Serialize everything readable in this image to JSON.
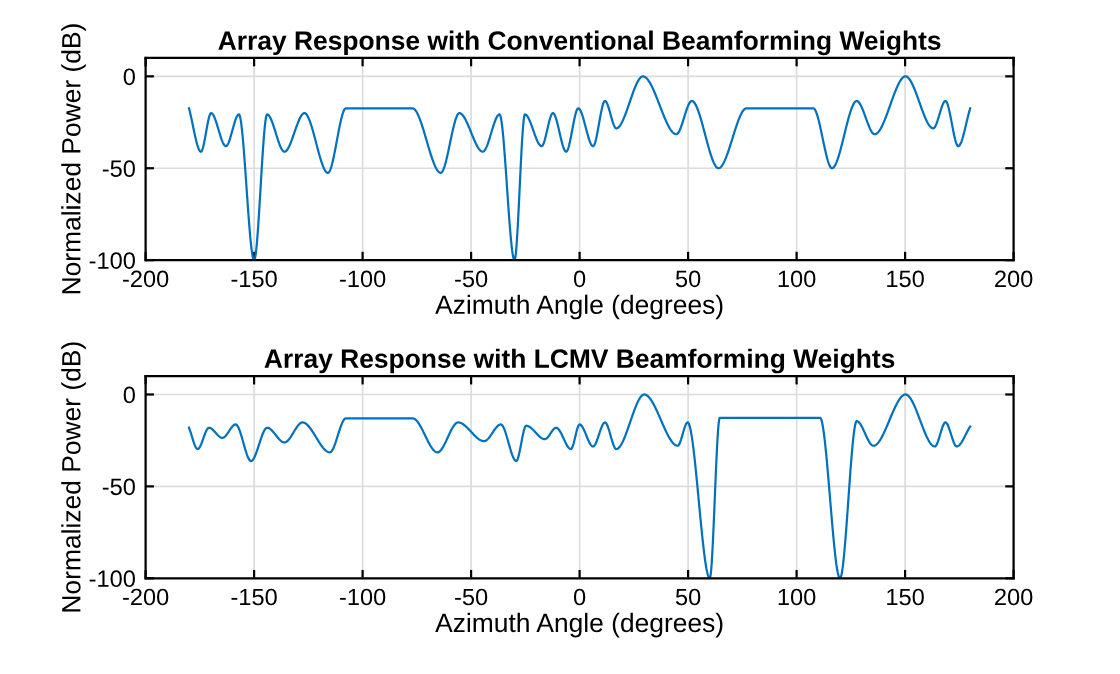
{
  "chart_data": [
    {
      "type": "line",
      "title": "Array Response with Conventional Beamforming Weights",
      "xlabel": "Azimuth Angle (degrees)",
      "ylabel": "Normalized Power (dB)",
      "xlim": [
        -200,
        200
      ],
      "xticks": [
        -200,
        -150,
        -100,
        -50,
        0,
        50,
        100,
        150,
        200
      ],
      "ylim": [
        -100,
        10
      ],
      "yticks": [
        -100,
        -50,
        0
      ],
      "grid": true,
      "line_style": "solid",
      "marker": "none",
      "series": [
        {
          "color": "#0072bd",
          "x": [
            -180,
            -174.5,
            -169.8,
            -163,
            -157,
            -150,
            -144,
            -136,
            -126.8,
            -116,
            -107.7,
            -98.5,
            -77,
            -64,
            -55.4,
            -44.6,
            -36.9,
            -30,
            -25.2,
            -17.5,
            -12.3,
            -6.2,
            -0.6,
            6.2,
            11.7,
            16.9,
            29.2,
            44.6,
            51.7,
            64,
            76.9,
            92,
            107.7,
            116.3,
            127.7,
            136,
            150.2,
            163,
            168.6,
            174.5,
            180
          ],
          "values": [
            -17.4,
            -41,
            -20,
            -38,
            -20.7,
            -100,
            -20.7,
            -41,
            -20,
            -52.5,
            -17.4,
            -17.4,
            -17.4,
            -52.5,
            -20,
            -41,
            -20.7,
            -100,
            -20.7,
            -38,
            -20,
            -41,
            -17.4,
            -38,
            -13.4,
            -28.3,
            0,
            -31.5,
            -13.4,
            -50,
            -17.4,
            -17.4,
            -17.4,
            -50,
            -13.4,
            -31.5,
            0,
            -28.3,
            -13.4,
            -38,
            -17.4
          ]
        }
      ]
    },
    {
      "type": "line",
      "title": "Array Response with LCMV Beamforming Weights",
      "xlabel": "Azimuth Angle (degrees)",
      "ylabel": "Normalized Power (dB)",
      "xlim": [
        -200,
        200
      ],
      "xticks": [
        -200,
        -150,
        -100,
        -50,
        0,
        50,
        100,
        150,
        200
      ],
      "ylim": [
        -100,
        10
      ],
      "yticks": [
        -100,
        -50,
        0
      ],
      "grid": true,
      "line_style": "solid",
      "marker": "none",
      "series": [
        {
          "color": "#0072bd",
          "x": [
            -180,
            -176,
            -170.8,
            -164.6,
            -158.5,
            -151.4,
            -144,
            -136,
            -127.7,
            -115.1,
            -107.7,
            -92,
            -76.9,
            -65.5,
            -56,
            -44,
            -36.3,
            -29.2,
            -24.6,
            -16,
            -10.8,
            -4,
            0,
            6.2,
            11.7,
            16.9,
            29.8,
            45.2,
            49.8,
            60,
            64.6,
            88,
            110.8,
            120,
            127.7,
            135.4,
            150.2,
            163.7,
            168.6,
            173.8,
            180
          ],
          "values": [
            -18.1,
            -29.7,
            -18.1,
            -23.6,
            -16.3,
            -36.2,
            -18.1,
            -26.1,
            -15.2,
            -31.5,
            -13,
            -13,
            -13,
            -31.5,
            -15.2,
            -25.4,
            -16.3,
            -36.2,
            -17,
            -24.3,
            -18.1,
            -29.7,
            -16.3,
            -28.3,
            -15.2,
            -29.7,
            0,
            -27.9,
            -15.2,
            -100,
            -12.7,
            -12.7,
            -12.7,
            -100,
            -14.5,
            -27.9,
            0,
            -28.3,
            -15.2,
            -28.3,
            -17.4
          ]
        }
      ]
    }
  ]
}
